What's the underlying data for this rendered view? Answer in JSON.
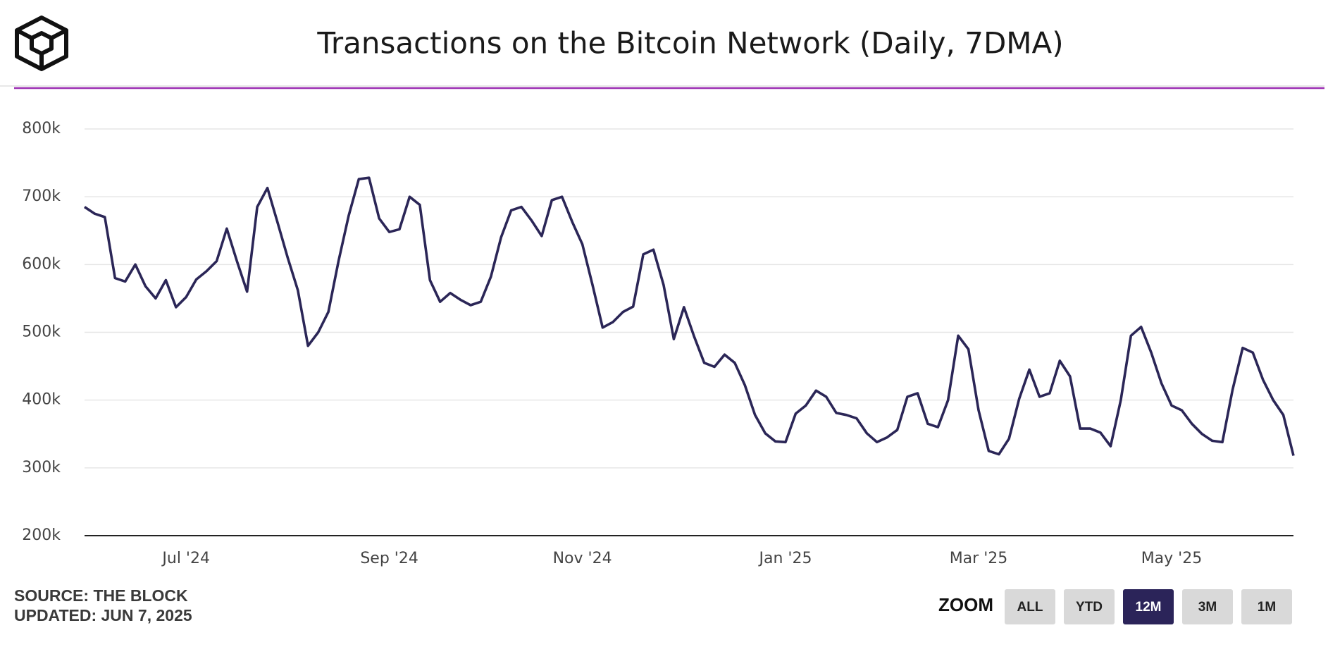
{
  "chart_data": {
    "type": "line",
    "title": "Transactions on the Bitcoin Network (Daily, 7DMA)",
    "categories": [
      null,
      null,
      null,
      null,
      null,
      null,
      null,
      null,
      null,
      null,
      "Jul '24",
      null,
      null,
      null,
      null,
      null,
      null,
      null,
      null,
      null,
      null,
      null,
      null,
      null,
      null,
      null,
      null,
      null,
      null,
      null,
      "Sep '24",
      null,
      null,
      null,
      null,
      null,
      null,
      null,
      null,
      null,
      null,
      null,
      null,
      null,
      null,
      null,
      null,
      null,
      null,
      "Nov '24",
      null,
      null,
      null,
      null,
      null,
      null,
      null,
      null,
      null,
      null,
      null,
      null,
      null,
      null,
      null,
      null,
      null,
      null,
      null,
      "Jan '25",
      null,
      null,
      null,
      null,
      null,
      null,
      null,
      null,
      null,
      null,
      null,
      null,
      null,
      null,
      null,
      null,
      null,
      null,
      "Mar '25",
      null,
      null,
      null,
      null,
      null,
      null,
      null,
      null,
      null,
      null,
      null,
      null,
      null,
      null,
      null,
      null,
      null,
      null,
      "May '25",
      null,
      null,
      null,
      null,
      null,
      null,
      null,
      null,
      null,
      null,
      null,
      null
    ],
    "values": [
      685000,
      675000,
      670000,
      580000,
      575000,
      600000,
      568000,
      550000,
      577000,
      537000,
      552000,
      578000,
      590000,
      605000,
      653000,
      605000,
      560000,
      685000,
      713000,
      662000,
      610000,
      562000,
      480000,
      500000,
      530000,
      605000,
      672000,
      726000,
      728000,
      668000,
      648000,
      652000,
      700000,
      688000,
      577000,
      545000,
      558000,
      548000,
      540000,
      545000,
      582000,
      640000,
      680000,
      685000,
      665000,
      642000,
      695000,
      700000,
      663000,
      630000,
      570000,
      507000,
      515000,
      530000,
      538000,
      615000,
      622000,
      570000,
      490000,
      537000,
      494000,
      455000,
      449000,
      467000,
      455000,
      422000,
      378000,
      351000,
      339000,
      338000,
      380000,
      392000,
      414000,
      405000,
      381000,
      378000,
      373000,
      351000,
      338000,
      345000,
      356000,
      405000,
      410000,
      365000,
      360000,
      400000,
      495000,
      475000,
      385000,
      325000,
      320000,
      343000,
      402000,
      445000,
      405000,
      410000,
      458000,
      435000,
      358000,
      358000,
      352000,
      332000,
      400000,
      495000,
      508000,
      470000,
      425000,
      392000,
      385000,
      365000,
      350000,
      340000,
      338000,
      415000,
      477000,
      470000,
      430000,
      400000,
      378000,
      318000
    ],
    "color": "#2b2657",
    "ylim": [
      200000,
      800000
    ],
    "yticks": [
      {
        "value": 200000,
        "label": "200k"
      },
      {
        "value": 300000,
        "label": "300k"
      },
      {
        "value": 400000,
        "label": "400k"
      },
      {
        "value": 500000,
        "label": "500k"
      },
      {
        "value": 600000,
        "label": "600k"
      },
      {
        "value": 700000,
        "label": "700k"
      },
      {
        "value": 800000,
        "label": "800k"
      }
    ],
    "grid": true
  },
  "footer": {
    "source": "SOURCE: THE BLOCK",
    "updated": "UPDATED: JUN 7, 2025"
  },
  "zoom": {
    "label": "ZOOM",
    "buttons": [
      "ALL",
      "YTD",
      "12M",
      "3M",
      "1M"
    ],
    "active": 2
  }
}
